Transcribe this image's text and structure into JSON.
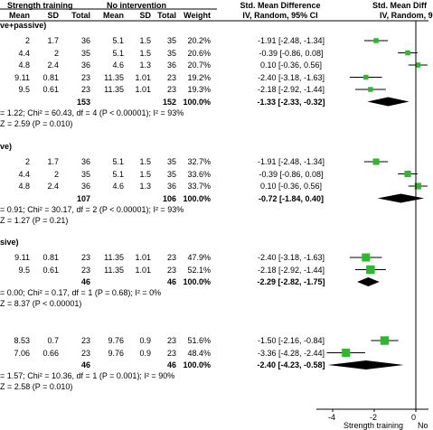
{
  "chart_data": {
    "type": "forest",
    "header": {
      "group1": "Strength training",
      "group2": "No intervention",
      "smd": "Std. Mean Difference",
      "smd_method": "IV, Random, 95% CI",
      "plot_title": "Std. Mean Diff",
      "plot_method": "IV, Random, 9",
      "cols": [
        "Mean",
        "SD",
        "Total",
        "Mean",
        "SD",
        "Total",
        "Weight"
      ]
    },
    "x_axis": {
      "ticks": [
        "-4",
        "-2",
        "0"
      ],
      "tick_values": [
        -4,
        -2,
        0
      ],
      "xlim": [
        -5,
        1
      ],
      "favours_left": "Strength training",
      "favours_right": "No"
    },
    "subgroups": [
      {
        "label": "ve+passive)",
        "rows": [
          {
            "m1": "2",
            "sd1": "1.7",
            "n1": "36",
            "m2": "5.1",
            "sd2": "1.5",
            "n2": "35",
            "w": "20.2%",
            "ci": "-1.91 [-2.48, -1.34]",
            "est": -1.91,
            "lo": -2.48,
            "hi": -1.34
          },
          {
            "m1": "4.4",
            "sd1": "2",
            "n1": "35",
            "m2": "5.1",
            "sd2": "1.5",
            "n2": "35",
            "w": "20.6%",
            "ci": "-0.39 [-0.86, 0.08]",
            "est": -0.39,
            "lo": -0.86,
            "hi": 0.08
          },
          {
            "m1": "4.8",
            "sd1": "2.4",
            "n1": "36",
            "m2": "4.6",
            "sd2": "1.3",
            "n2": "36",
            "w": "20.7%",
            "ci": "0.10 [-0.36, 0.56]",
            "est": 0.1,
            "lo": -0.36,
            "hi": 0.56
          },
          {
            "m1": "9.11",
            "sd1": "0.81",
            "n1": "23",
            "m2": "11.35",
            "sd2": "1.01",
            "n2": "23",
            "w": "19.2%",
            "ci": "-2.40 [-3.18, -1.63]",
            "est": -2.4,
            "lo": -3.18,
            "hi": -1.63
          },
          {
            "m1": "9.5",
            "sd1": "0.61",
            "n1": "23",
            "m2": "11.35",
            "sd2": "1.01",
            "n2": "23",
            "w": "19.3%",
            "ci": "-2.18 [-2.92, -1.44]",
            "est": -2.18,
            "lo": -2.92,
            "hi": -1.44
          }
        ],
        "total": {
          "n1": "153",
          "n2": "152",
          "w": "100.0%",
          "ci": "-1.33 [-2.33, -0.32]",
          "est": -1.33,
          "lo": -2.33,
          "hi": -0.32
        },
        "het": "= 1.22; Chi² = 60.43, df = 4 (P < 0.00001); I² = 93%",
        "z": "Z = 2.59 (P = 0.010)"
      },
      {
        "label": "ve)",
        "rows": [
          {
            "m1": "2",
            "sd1": "1.7",
            "n1": "36",
            "m2": "5.1",
            "sd2": "1.5",
            "n2": "35",
            "w": "32.7%",
            "ci": "-1.91 [-2.48, -1.34]",
            "est": -1.91,
            "lo": -2.48,
            "hi": -1.34
          },
          {
            "m1": "4.4",
            "sd1": "2",
            "n1": "35",
            "m2": "5.1",
            "sd2": "1.5",
            "n2": "35",
            "w": "33.6%",
            "ci": "-0.39 [-0.86, 0.08]",
            "est": -0.39,
            "lo": -0.86,
            "hi": 0.08
          },
          {
            "m1": "4.8",
            "sd1": "2.4",
            "n1": "36",
            "m2": "4.6",
            "sd2": "1.3",
            "n2": "36",
            "w": "33.7%",
            "ci": "0.10 [-0.36, 0.56]",
            "est": 0.1,
            "lo": -0.36,
            "hi": 0.56
          }
        ],
        "total": {
          "n1": "107",
          "n2": "106",
          "w": "100.0%",
          "ci": "-0.72 [-1.84, 0.40]",
          "est": -0.72,
          "lo": -1.84,
          "hi": 0.4
        },
        "het": "= 0.91; Chi² = 30.17, df = 2 (P < 0.00001); I² = 93%",
        "z": "Z = 1.27 (P = 0.21)"
      },
      {
        "label": "sive)",
        "rows": [
          {
            "m1": "9.11",
            "sd1": "0.81",
            "n1": "23",
            "m2": "11.35",
            "sd2": "1.01",
            "n2": "23",
            "w": "47.9%",
            "ci": "-2.40 [-3.18, -1.63]",
            "est": -2.4,
            "lo": -3.18,
            "hi": -1.63
          },
          {
            "m1": "9.5",
            "sd1": "0.61",
            "n1": "23",
            "m2": "11.35",
            "sd2": "1.01",
            "n2": "23",
            "w": "52.1%",
            "ci": "-2.18 [-2.92, -1.44]",
            "est": -2.18,
            "lo": -2.92,
            "hi": -1.44
          }
        ],
        "total": {
          "n1": "46",
          "n2": "46",
          "w": "100.0%",
          "ci": "-2.29 [-2.82, -1.75]",
          "est": -2.29,
          "lo": -2.82,
          "hi": -1.75
        },
        "het": "= 0.00; Chi² = 0.17, df = 1 (P = 0.68); I² = 0%",
        "z": "Z = 8.37 (P < 0.00001)"
      },
      {
        "label": "",
        "rows": [
          {
            "m1": "8.53",
            "sd1": "0.7",
            "n1": "23",
            "m2": "9.76",
            "sd2": "0.9",
            "n2": "23",
            "w": "51.6%",
            "ci": "-1.50 [-2.16, -0.84]",
            "est": -1.5,
            "lo": -2.16,
            "hi": -0.84
          },
          {
            "m1": "7.06",
            "sd1": "0.66",
            "n1": "23",
            "m2": "9.76",
            "sd2": "0.9",
            "n2": "23",
            "w": "48.4%",
            "ci": "-3.36 [-4.28, -2.44]",
            "est": -3.36,
            "lo": -4.28,
            "hi": -2.44
          }
        ],
        "total": {
          "n1": "46",
          "n2": "46",
          "w": "100.0%",
          "ci": "-2.40 [-4.23, -0.58]",
          "est": -2.4,
          "lo": -4.23,
          "hi": -0.58
        },
        "het": "= 1.57; Chi² = 10.36, df = 1 (P = 0.001); I² = 90%",
        "z": "Z = 2.58 (P = 0.010)"
      }
    ],
    "colors": {
      "study_marker": "#2db82d",
      "total_marker": "#000000",
      "header_line": "#000000"
    }
  }
}
